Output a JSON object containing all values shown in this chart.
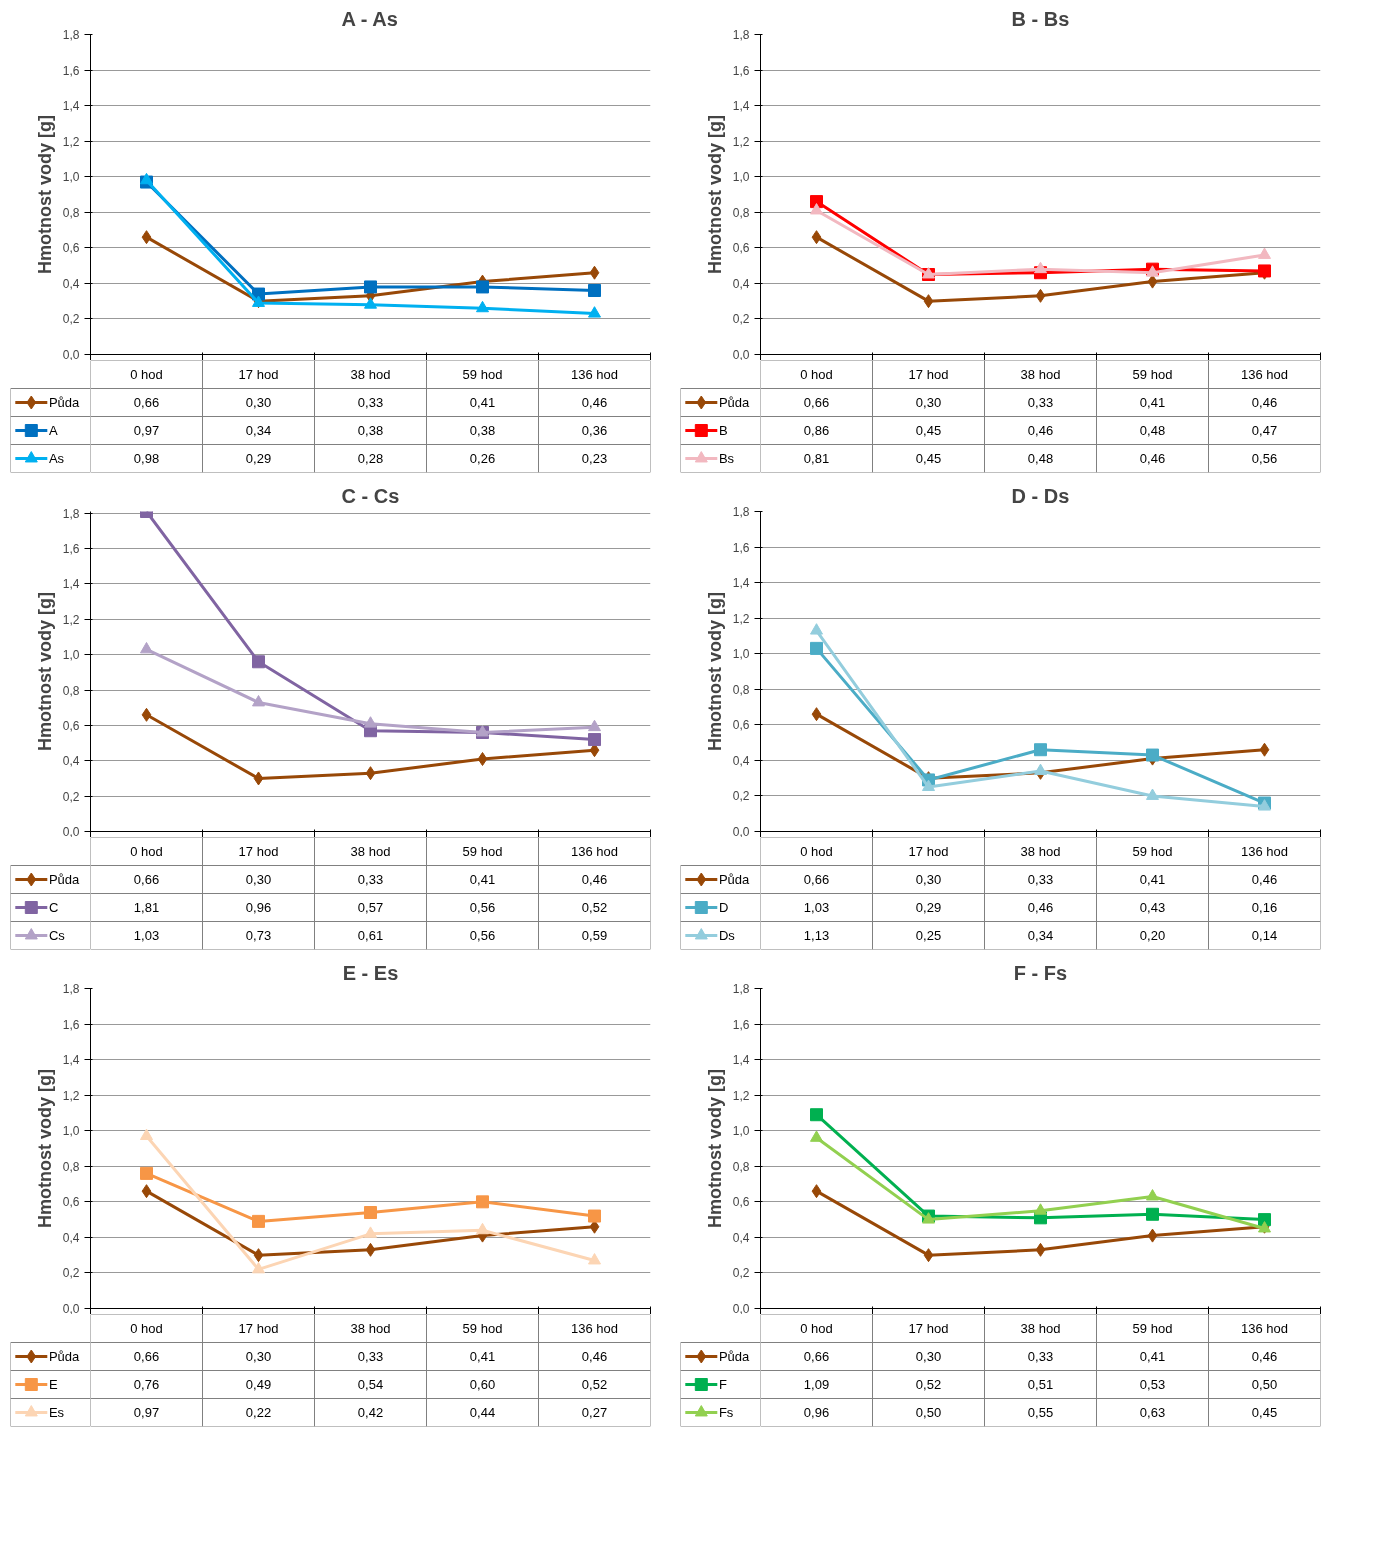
{
  "chart_data": [
    {
      "type": "line",
      "title": "A - As",
      "ylabel": "Hmotnost vody [g]",
      "categories": [
        "0 hod",
        "17 hod",
        "38 hod",
        "59 hod",
        "136 hod"
      ],
      "ylim": [
        0,
        1.8
      ],
      "yticks": [
        {
          "value": 0,
          "label": "0,0"
        },
        {
          "value": 0.2,
          "label": "0,2"
        },
        {
          "value": 0.4,
          "label": "0,4"
        },
        {
          "value": 0.6,
          "label": "0,6"
        },
        {
          "value": 0.8,
          "label": "0,8"
        },
        {
          "value": 1.0,
          "label": "1,0"
        },
        {
          "value": 1.2,
          "label": "1,2"
        },
        {
          "value": 1.4,
          "label": "1,4"
        },
        {
          "value": 1.6,
          "label": "1,6"
        },
        {
          "value": 1.8,
          "label": "1,8"
        }
      ],
      "grid": "y",
      "legend": "bottom",
      "series": [
        {
          "name": "Půda",
          "color": "#984807",
          "marker": "diamond",
          "values": [
            0.66,
            0.3,
            0.33,
            0.41,
            0.46
          ],
          "value_labels": [
            "0,66",
            "0,30",
            "0,33",
            "0,41",
            "0,46"
          ]
        },
        {
          "name": "A",
          "color": "#0070c0",
          "marker": "square",
          "values": [
            0.97,
            0.34,
            0.38,
            0.38,
            0.36
          ],
          "value_labels": [
            "0,97",
            "0,34",
            "0,38",
            "0,38",
            "0,36"
          ]
        },
        {
          "name": "As",
          "color": "#00b0f0",
          "marker": "triangle",
          "values": [
            0.98,
            0.29,
            0.28,
            0.26,
            0.23
          ],
          "value_labels": [
            "0,98",
            "0,29",
            "0,28",
            "0,26",
            "0,23"
          ]
        }
      ]
    },
    {
      "type": "line",
      "title": "B - Bs",
      "ylabel": "Hmotnost vody [g]",
      "categories": [
        "0 hod",
        "17 hod",
        "38 hod",
        "59 hod",
        "136 hod"
      ],
      "ylim": [
        0,
        1.8
      ],
      "yticks": [
        {
          "value": 0,
          "label": "0,0"
        },
        {
          "value": 0.2,
          "label": "0,2"
        },
        {
          "value": 0.4,
          "label": "0,4"
        },
        {
          "value": 0.6,
          "label": "0,6"
        },
        {
          "value": 0.8,
          "label": "0,8"
        },
        {
          "value": 1.0,
          "label": "1,0"
        },
        {
          "value": 1.2,
          "label": "1,2"
        },
        {
          "value": 1.4,
          "label": "1,4"
        },
        {
          "value": 1.6,
          "label": "1,6"
        },
        {
          "value": 1.8,
          "label": "1,8"
        }
      ],
      "grid": "y",
      "legend": "bottom",
      "series": [
        {
          "name": "Půda",
          "color": "#984807",
          "marker": "diamond",
          "values": [
            0.66,
            0.3,
            0.33,
            0.41,
            0.46
          ],
          "value_labels": [
            "0,66",
            "0,30",
            "0,33",
            "0,41",
            "0,46"
          ]
        },
        {
          "name": "B",
          "color": "#ff0000",
          "marker": "square",
          "values": [
            0.86,
            0.45,
            0.46,
            0.48,
            0.47
          ],
          "value_labels": [
            "0,86",
            "0,45",
            "0,46",
            "0,48",
            "0,47"
          ]
        },
        {
          "name": "Bs",
          "color": "#f2b8c0",
          "marker": "triangle",
          "values": [
            0.81,
            0.45,
            0.48,
            0.46,
            0.56
          ],
          "value_labels": [
            "0,81",
            "0,45",
            "0,48",
            "0,46",
            "0,56"
          ]
        }
      ]
    },
    {
      "type": "line",
      "title": "C - Cs",
      "ylabel": "Hmotnost vody [g]",
      "categories": [
        "0 hod",
        "17 hod",
        "38 hod",
        "59 hod",
        "136 hod"
      ],
      "ylim": [
        0,
        1.81
      ],
      "yticks": [
        {
          "value": 0,
          "label": "0,0"
        },
        {
          "value": 0.2,
          "label": "0,2"
        },
        {
          "value": 0.4,
          "label": "0,4"
        },
        {
          "value": 0.6,
          "label": "0,6"
        },
        {
          "value": 0.8,
          "label": "0,8"
        },
        {
          "value": 1.0,
          "label": "1,0"
        },
        {
          "value": 1.2,
          "label": "1,2"
        },
        {
          "value": 1.4,
          "label": "1,4"
        },
        {
          "value": 1.6,
          "label": "1,6"
        },
        {
          "value": 1.8,
          "label": "1,8"
        }
      ],
      "grid": "y",
      "legend": "bottom",
      "series": [
        {
          "name": "Půda",
          "color": "#984807",
          "marker": "diamond",
          "values": [
            0.66,
            0.3,
            0.33,
            0.41,
            0.46
          ],
          "value_labels": [
            "0,66",
            "0,30",
            "0,33",
            "0,41",
            "0,46"
          ]
        },
        {
          "name": "C",
          "color": "#8064a2",
          "marker": "square",
          "values": [
            1.81,
            0.96,
            0.57,
            0.56,
            0.52
          ],
          "value_labels": [
            "1,81",
            "0,96",
            "0,57",
            "0,56",
            "0,52"
          ]
        },
        {
          "name": "Cs",
          "color": "#b3a2c7",
          "marker": "triangle",
          "values": [
            1.03,
            0.73,
            0.61,
            0.56,
            0.59
          ],
          "value_labels": [
            "1,03",
            "0,73",
            "0,61",
            "0,56",
            "0,59"
          ]
        }
      ]
    },
    {
      "type": "line",
      "title": "D - Ds",
      "ylabel": "Hmotnost vody [g]",
      "categories": [
        "0 hod",
        "17 hod",
        "38 hod",
        "59 hod",
        "136 hod"
      ],
      "ylim": [
        0,
        1.8
      ],
      "yticks": [
        {
          "value": 0,
          "label": "0,0"
        },
        {
          "value": 0.2,
          "label": "0,2"
        },
        {
          "value": 0.4,
          "label": "0,4"
        },
        {
          "value": 0.6,
          "label": "0,6"
        },
        {
          "value": 0.8,
          "label": "0,8"
        },
        {
          "value": 1.0,
          "label": "1,0"
        },
        {
          "value": 1.2,
          "label": "1,2"
        },
        {
          "value": 1.4,
          "label": "1,4"
        },
        {
          "value": 1.6,
          "label": "1,6"
        },
        {
          "value": 1.8,
          "label": "1,8"
        }
      ],
      "grid": "y",
      "legend": "bottom",
      "series": [
        {
          "name": "Půda",
          "color": "#984807",
          "marker": "diamond",
          "values": [
            0.66,
            0.3,
            0.33,
            0.41,
            0.46
          ],
          "value_labels": [
            "0,66",
            "0,30",
            "0,33",
            "0,41",
            "0,46"
          ]
        },
        {
          "name": "D",
          "color": "#4bacc6",
          "marker": "square",
          "values": [
            1.03,
            0.29,
            0.46,
            0.43,
            0.16
          ],
          "value_labels": [
            "1,03",
            "0,29",
            "0,46",
            "0,43",
            "0,16"
          ]
        },
        {
          "name": "Ds",
          "color": "#93cddd",
          "marker": "triangle",
          "values": [
            1.13,
            0.25,
            0.34,
            0.2,
            0.14
          ],
          "value_labels": [
            "1,13",
            "0,25",
            "0,34",
            "0,20",
            "0,14"
          ]
        }
      ]
    },
    {
      "type": "line",
      "title": "E - Es",
      "ylabel": "Hmotnost vody [g]",
      "categories": [
        "0 hod",
        "17 hod",
        "38 hod",
        "59 hod",
        "136 hod"
      ],
      "ylim": [
        0,
        1.8
      ],
      "yticks": [
        {
          "value": 0,
          "label": "0,0"
        },
        {
          "value": 0.2,
          "label": "0,2"
        },
        {
          "value": 0.4,
          "label": "0,4"
        },
        {
          "value": 0.6,
          "label": "0,6"
        },
        {
          "value": 0.8,
          "label": "0,8"
        },
        {
          "value": 1.0,
          "label": "1,0"
        },
        {
          "value": 1.2,
          "label": "1,2"
        },
        {
          "value": 1.4,
          "label": "1,4"
        },
        {
          "value": 1.6,
          "label": "1,6"
        },
        {
          "value": 1.8,
          "label": "1,8"
        }
      ],
      "grid": "y",
      "legend": "bottom",
      "series": [
        {
          "name": "Půda",
          "color": "#984807",
          "marker": "diamond",
          "values": [
            0.66,
            0.3,
            0.33,
            0.41,
            0.46
          ],
          "value_labels": [
            "0,66",
            "0,30",
            "0,33",
            "0,41",
            "0,46"
          ]
        },
        {
          "name": "E",
          "color": "#f79646",
          "marker": "square",
          "values": [
            0.76,
            0.49,
            0.54,
            0.6,
            0.52
          ],
          "value_labels": [
            "0,76",
            "0,49",
            "0,54",
            "0,60",
            "0,52"
          ]
        },
        {
          "name": "Es",
          "color": "#fcd5b4",
          "marker": "triangle",
          "values": [
            0.97,
            0.22,
            0.42,
            0.44,
            0.27
          ],
          "value_labels": [
            "0,97",
            "0,22",
            "0,42",
            "0,44",
            "0,27"
          ]
        }
      ]
    },
    {
      "type": "line",
      "title": "F - Fs",
      "ylabel": "Hmotnost vody [g]",
      "categories": [
        "0 hod",
        "17 hod",
        "38 hod",
        "59 hod",
        "136 hod"
      ],
      "ylim": [
        0,
        1.8
      ],
      "yticks": [
        {
          "value": 0,
          "label": "0,0"
        },
        {
          "value": 0.2,
          "label": "0,2"
        },
        {
          "value": 0.4,
          "label": "0,4"
        },
        {
          "value": 0.6,
          "label": "0,6"
        },
        {
          "value": 0.8,
          "label": "0,8"
        },
        {
          "value": 1.0,
          "label": "1,0"
        },
        {
          "value": 1.2,
          "label": "1,2"
        },
        {
          "value": 1.4,
          "label": "1,4"
        },
        {
          "value": 1.6,
          "label": "1,6"
        },
        {
          "value": 1.8,
          "label": "1,8"
        }
      ],
      "grid": "y",
      "legend": "bottom",
      "series": [
        {
          "name": "Půda",
          "color": "#984807",
          "marker": "diamond",
          "values": [
            0.66,
            0.3,
            0.33,
            0.41,
            0.46
          ],
          "value_labels": [
            "0,66",
            "0,30",
            "0,33",
            "0,41",
            "0,46"
          ]
        },
        {
          "name": "F",
          "color": "#00b050",
          "marker": "square",
          "values": [
            1.09,
            0.52,
            0.51,
            0.53,
            0.5
          ],
          "value_labels": [
            "1,09",
            "0,52",
            "0,51",
            "0,53",
            "0,50"
          ]
        },
        {
          "name": "Fs",
          "color": "#92d050",
          "marker": "triangle",
          "values": [
            0.96,
            0.5,
            0.55,
            0.63,
            0.45
          ],
          "value_labels": [
            "0,96",
            "0,50",
            "0,55",
            "0,63",
            "0,45"
          ]
        }
      ]
    }
  ]
}
